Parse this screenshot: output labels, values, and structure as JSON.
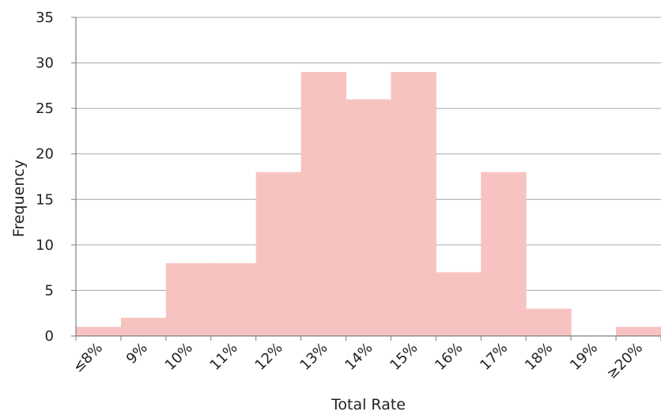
{
  "chart_data": {
    "type": "bar",
    "title": "",
    "xlabel": "Total Rate",
    "ylabel": "Frequency",
    "categories": [
      "≤8%",
      "9%",
      "10%",
      "11%",
      "12%",
      "13%",
      "14%",
      "15%",
      "16%",
      "17%",
      "18%",
      "19%",
      "≥20%"
    ],
    "values": [
      1,
      2,
      8,
      8,
      18,
      29,
      26,
      29,
      7,
      18,
      3,
      0,
      1
    ],
    "ylim": [
      0,
      35
    ],
    "yticks": [
      0,
      5,
      10,
      15,
      20,
      25,
      30,
      35
    ],
    "grid": true,
    "legend": "none",
    "bar_color": "#f7c3c0",
    "grid_color": "#a6a6a6"
  }
}
